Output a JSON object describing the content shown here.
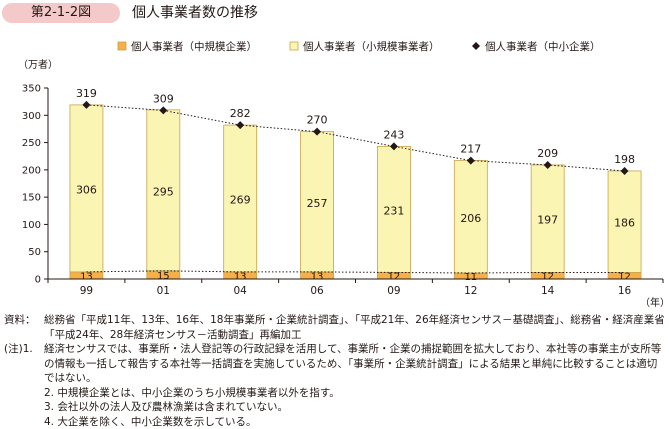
{
  "header": {
    "figure_number": "第2-1-2図",
    "title": "個人事業者数の推移"
  },
  "colors": {
    "small_scale_bar": "#f5b04a",
    "small_bar": "#fbf5b4",
    "bar_stroke": "#c9a24a",
    "total_line": "#231815"
  },
  "chart_data": {
    "type": "bar",
    "stacked": true,
    "categories": [
      "99",
      "01",
      "04",
      "06",
      "09",
      "12",
      "14",
      "16"
    ],
    "series": [
      {
        "name": "個人事業者（中規模企業）",
        "values": [
          13,
          15,
          13,
          13,
          12,
          11,
          12,
          12
        ],
        "color": "#f5b04a"
      },
      {
        "name": "個人事業者（小規模事業者）",
        "values": [
          306,
          295,
          269,
          257,
          231,
          206,
          197,
          186
        ],
        "color": "#fbf5b4"
      },
      {
        "name": "個人事業者（中小企業）",
        "values": [
          319,
          309,
          282,
          270,
          243,
          217,
          209,
          198
        ],
        "type": "line",
        "marker": "diamond",
        "style": "dotted"
      }
    ],
    "ylabel": "（万者）",
    "xlabel": "（年）",
    "ylim": [
      0,
      350
    ],
    "yticks": [
      0,
      50,
      100,
      150,
      200,
      250,
      300,
      350
    ],
    "legend_position": "top",
    "grid": false
  },
  "notes": {
    "source_label": "資料：",
    "source_text": "総務省「平成11年、13年、16年、18年事業所・企業統計調査」、「平成21年、26年経済センサス－基礎調査」、総務省・経済産業省「平成24年、28年経済センサス－活動調査」再編加工",
    "note_label": "(注)1.",
    "note1": "経済センサスでは、事業所・法人登記等の行政記録を活用して、事業所・企業の捕捉範囲を拡大しており、本社等の事業主が支所等の情報も一括して報告する本社等一括調査を実施しているため、「事業所・企業統計調査」による結果と単純に比較することは適切ではない。",
    "note2": "2. 中規模企業とは、中小企業のうち小規模事業者以外を指す。",
    "note3": "3. 会社以外の法人及び農林漁業は含まれていない。",
    "note4": "4. 大企業を除く、中小企業数を示している。"
  }
}
